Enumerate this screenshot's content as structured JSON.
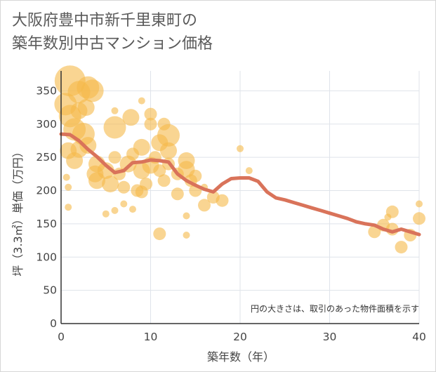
{
  "chart_data": {
    "type": "scatter",
    "title": "大阪府豊中市新千里東町の\n築年数別中古マンション価格",
    "xlabel": "築年数（年）",
    "ylabel": "坪（3.3㎡）単価（万円）",
    "note": "円の大きさは、取引のあった物件面積を示す",
    "xlim": [
      0,
      40
    ],
    "ylim": [
      0,
      380
    ],
    "x_ticks": [
      "0",
      "10",
      "20",
      "30",
      "40"
    ],
    "y_ticks": [
      "0",
      "50",
      "100",
      "150",
      "200",
      "250",
      "300",
      "350"
    ],
    "x_tick_values": [
      0,
      10,
      20,
      30,
      40
    ],
    "y_tick_values": [
      0,
      50,
      100,
      150,
      200,
      250,
      300,
      350
    ],
    "grid": true,
    "colors": {
      "bubble": "#f5b94a",
      "trend": "#d9735a",
      "grid": "#dfe3ea",
      "axis": "#333333"
    },
    "bubbles": [
      {
        "x": 1,
        "y": 365,
        "s": 5
      },
      {
        "x": 0.5,
        "y": 330,
        "s": 4
      },
      {
        "x": 1,
        "y": 312,
        "s": 4
      },
      {
        "x": 1.5,
        "y": 292,
        "s": 4
      },
      {
        "x": 2,
        "y": 348,
        "s": 4
      },
      {
        "x": 2.5,
        "y": 285,
        "s": 4
      },
      {
        "x": 3,
        "y": 355,
        "s": 4
      },
      {
        "x": 3.5,
        "y": 350,
        "s": 4
      },
      {
        "x": 2,
        "y": 320,
        "s": 3
      },
      {
        "x": 2.8,
        "y": 325,
        "s": 3
      },
      {
        "x": 0.8,
        "y": 260,
        "s": 3
      },
      {
        "x": 1.5,
        "y": 245,
        "s": 3
      },
      {
        "x": 2,
        "y": 262,
        "s": 3
      },
      {
        "x": 3,
        "y": 268,
        "s": 3
      },
      {
        "x": 4,
        "y": 240,
        "s": 3
      },
      {
        "x": 3.8,
        "y": 225,
        "s": 3
      },
      {
        "x": 4,
        "y": 215,
        "s": 3
      },
      {
        "x": 5,
        "y": 230,
        "s": 3
      },
      {
        "x": 5.5,
        "y": 210,
        "s": 3
      },
      {
        "x": 6,
        "y": 295,
        "s": 4
      },
      {
        "x": 6,
        "y": 250,
        "s": 2
      },
      {
        "x": 6.5,
        "y": 225,
        "s": 2
      },
      {
        "x": 7,
        "y": 205,
        "s": 2
      },
      {
        "x": 7.5,
        "y": 240,
        "s": 3
      },
      {
        "x": 7.8,
        "y": 310,
        "s": 3
      },
      {
        "x": 8,
        "y": 255,
        "s": 2
      },
      {
        "x": 8.5,
        "y": 200,
        "s": 2
      },
      {
        "x": 9,
        "y": 265,
        "s": 3
      },
      {
        "x": 9,
        "y": 230,
        "s": 3
      },
      {
        "x": 9,
        "y": 198,
        "s": 2
      },
      {
        "x": 9.5,
        "y": 210,
        "s": 2
      },
      {
        "x": 10,
        "y": 315,
        "s": 2
      },
      {
        "x": 10,
        "y": 300,
        "s": 2
      },
      {
        "x": 10,
        "y": 238,
        "s": 3
      },
      {
        "x": 10.5,
        "y": 250,
        "s": 2
      },
      {
        "x": 11,
        "y": 272,
        "s": 3
      },
      {
        "x": 11,
        "y": 230,
        "s": 2
      },
      {
        "x": 11.5,
        "y": 215,
        "s": 2
      },
      {
        "x": 11.5,
        "y": 300,
        "s": 2
      },
      {
        "x": 12,
        "y": 283,
        "s": 4
      },
      {
        "x": 12,
        "y": 260,
        "s": 3
      },
      {
        "x": 12,
        "y": 240,
        "s": 2
      },
      {
        "x": 13,
        "y": 225,
        "s": 2
      },
      {
        "x": 13,
        "y": 195,
        "s": 2
      },
      {
        "x": 14,
        "y": 245,
        "s": 3
      },
      {
        "x": 14,
        "y": 232,
        "s": 3
      },
      {
        "x": 14.5,
        "y": 215,
        "s": 2
      },
      {
        "x": 15,
        "y": 222,
        "s": 2
      },
      {
        "x": 15,
        "y": 200,
        "s": 2
      },
      {
        "x": 16,
        "y": 178,
        "s": 2
      },
      {
        "x": 16,
        "y": 205,
        "s": 1
      },
      {
        "x": 17,
        "y": 190,
        "s": 2
      },
      {
        "x": 18,
        "y": 185,
        "s": 2
      },
      {
        "x": 11,
        "y": 135,
        "s": 2
      },
      {
        "x": 14,
        "y": 133,
        "s": 1
      },
      {
        "x": 14,
        "y": 162,
        "s": 1
      },
      {
        "x": 5,
        "y": 165,
        "s": 1
      },
      {
        "x": 8,
        "y": 172,
        "s": 1
      },
      {
        "x": 0.8,
        "y": 175,
        "s": 1
      },
      {
        "x": 0.8,
        "y": 205,
        "s": 1
      },
      {
        "x": 0.6,
        "y": 220,
        "s": 1
      },
      {
        "x": 6,
        "y": 170,
        "s": 1
      },
      {
        "x": 7,
        "y": 180,
        "s": 1
      },
      {
        "x": 9,
        "y": 335,
        "s": 1
      },
      {
        "x": 6,
        "y": 320,
        "s": 1
      },
      {
        "x": 20,
        "y": 263,
        "s": 1
      },
      {
        "x": 21,
        "y": 230,
        "s": 1
      },
      {
        "x": 35,
        "y": 138,
        "s": 2
      },
      {
        "x": 36,
        "y": 148,
        "s": 2
      },
      {
        "x": 36.5,
        "y": 160,
        "s": 1
      },
      {
        "x": 37,
        "y": 168,
        "s": 2
      },
      {
        "x": 37,
        "y": 142,
        "s": 2
      },
      {
        "x": 38,
        "y": 115,
        "s": 2
      },
      {
        "x": 39,
        "y": 133,
        "s": 2
      },
      {
        "x": 40,
        "y": 158,
        "s": 2
      },
      {
        "x": 40,
        "y": 180,
        "s": 1
      }
    ],
    "trend": {
      "x": [
        0,
        1,
        2,
        3,
        4,
        5,
        6,
        7,
        8,
        9,
        10,
        11,
        12,
        13,
        14,
        15,
        16,
        17,
        18,
        19,
        20,
        21,
        22,
        23,
        24,
        25,
        26,
        27,
        28,
        29,
        30,
        31,
        32,
        33,
        34,
        35,
        36,
        37,
        38,
        39,
        40
      ],
      "y": [
        285,
        284,
        275,
        262,
        251,
        238,
        227,
        230,
        242,
        243,
        246,
        245,
        243,
        225,
        215,
        208,
        202,
        198,
        210,
        218,
        219,
        219,
        214,
        198,
        189,
        186,
        182,
        178,
        174,
        170,
        166,
        162,
        158,
        153,
        150,
        148,
        142,
        138,
        142,
        138,
        134
      ]
    }
  }
}
